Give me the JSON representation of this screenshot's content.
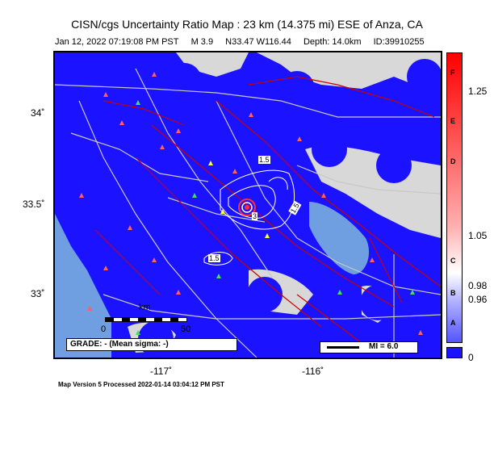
{
  "header": {
    "title": "CISN/cgs Uncertainty Ratio Map : 23 km (14.375 mi) ESE of Anza, CA",
    "date": "Jan 12, 2022 07:19:08 PM PST",
    "magnitude": "M 3.9",
    "location": "N33.47 W116.44",
    "depth": "Depth: 14.0km",
    "id": "ID:39910255"
  },
  "map": {
    "lat_labels": [
      "34˚",
      "33.5˚",
      "33˚"
    ],
    "lon_labels": [
      "-117˚",
      "-116˚"
    ],
    "contour_labels": [
      "1.5",
      "1.5",
      "1.5",
      "3"
    ],
    "scale": {
      "unit": "km",
      "start": "0",
      "end": "50"
    },
    "grade_text": "GRADE: - (Mean sigma: -)",
    "mi_text": "MI = 6.0",
    "colors": {
      "uncertainty_low": "#1b12ff",
      "ocean": "#6f9fe0",
      "land": "#d8d8d8",
      "faults": "#c80000"
    }
  },
  "colorbar": {
    "letters": [
      "F",
      "E",
      "D",
      "C",
      "B",
      "A"
    ],
    "ticks": [
      "1.25",
      "1.05",
      "0.98",
      "0.96",
      "0"
    ]
  },
  "footer": {
    "text": "Map Version 5 Processed 2022-01-14 03:04:12 PM PST"
  }
}
